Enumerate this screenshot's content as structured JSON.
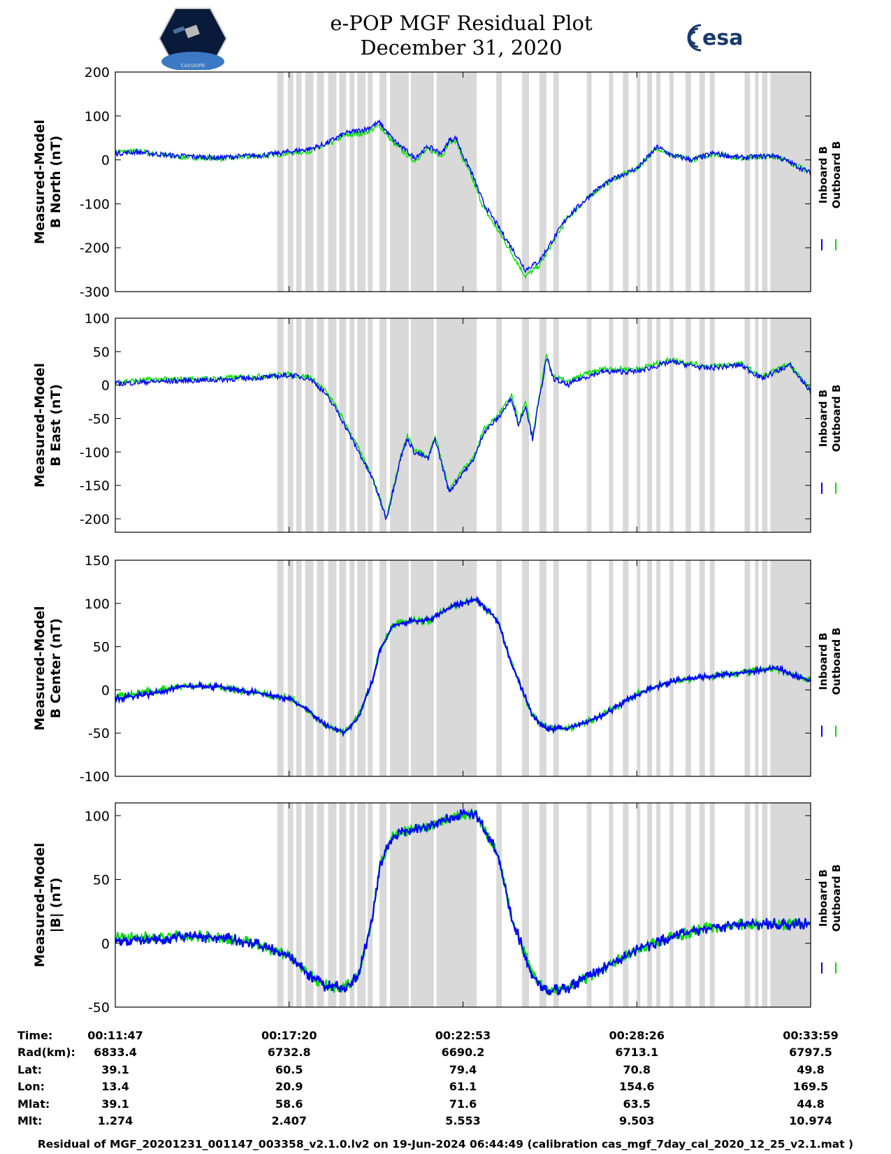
{
  "header": {
    "title": "e-POP MGF Residual Plot",
    "date": "December 31, 2020",
    "logo_left_text": "CASSIOPE",
    "logo_right_text": "esa"
  },
  "colors": {
    "inboard": "#0000ff",
    "outboard": "#00e000",
    "shade": "#d9d9d9"
  },
  "legend": {
    "inboard": "Inboard B",
    "outboard": "Outboard B"
  },
  "chart_data": [
    {
      "type": "line",
      "ylabel": [
        "Measured-Model",
        "B North (nT)"
      ],
      "ylim": [
        -300,
        200
      ],
      "yticks": [
        "200",
        "100",
        "0",
        "-100",
        "-200",
        "-300"
      ],
      "ytick_values": [
        200,
        100,
        0,
        -100,
        -200,
        -300
      ],
      "series": [
        {
          "name": "Inboard B",
          "x": [
            0,
            0.03,
            0.08,
            0.15,
            0.22,
            0.28,
            0.3,
            0.33,
            0.36,
            0.38,
            0.4,
            0.43,
            0.45,
            0.47,
            0.48,
            0.49,
            0.5,
            0.51,
            0.52,
            0.53,
            0.55,
            0.57,
            0.59,
            0.61,
            0.63,
            0.65,
            0.67,
            0.69,
            0.72,
            0.75,
            0.78,
            0.8,
            0.83,
            0.86,
            0.9,
            0.95,
            1.0
          ],
          "y": [
            15,
            18,
            10,
            5,
            12,
            25,
            35,
            60,
            70,
            85,
            45,
            5,
            30,
            15,
            45,
            50,
            10,
            -20,
            -60,
            -100,
            -150,
            -200,
            -250,
            -230,
            -180,
            -130,
            -100,
            -70,
            -40,
            -20,
            30,
            10,
            0,
            15,
            5,
            10,
            -30
          ]
        },
        {
          "name": "Outboard B",
          "x": [
            0,
            0.03,
            0.08,
            0.15,
            0.22,
            0.28,
            0.3,
            0.33,
            0.36,
            0.38,
            0.4,
            0.43,
            0.45,
            0.47,
            0.48,
            0.49,
            0.5,
            0.51,
            0.52,
            0.53,
            0.55,
            0.57,
            0.59,
            0.61,
            0.63,
            0.65,
            0.67,
            0.69,
            0.72,
            0.75,
            0.78,
            0.8,
            0.83,
            0.86,
            0.9,
            0.95,
            1.0
          ],
          "y": [
            18,
            20,
            8,
            3,
            10,
            20,
            30,
            55,
            62,
            78,
            38,
            -2,
            24,
            10,
            40,
            44,
            0,
            -30,
            -70,
            -110,
            -160,
            -212,
            -265,
            -240,
            -185,
            -133,
            -102,
            -72,
            -40,
            -20,
            28,
            10,
            0,
            14,
            4,
            9,
            -28
          ]
        }
      ]
    },
    {
      "type": "line",
      "ylabel": [
        "Measured-Model",
        "B East (nT)"
      ],
      "ylim": [
        -220,
        100
      ],
      "yticks": [
        "100",
        "50",
        "0",
        "-50",
        "-100",
        "-150",
        "-200"
      ],
      "ytick_values": [
        100,
        50,
        0,
        -50,
        -100,
        -150,
        -200
      ],
      "series": [
        {
          "name": "Inboard B",
          "x": [
            0,
            0.05,
            0.15,
            0.22,
            0.25,
            0.28,
            0.3,
            0.32,
            0.35,
            0.37,
            0.39,
            0.41,
            0.42,
            0.43,
            0.45,
            0.46,
            0.48,
            0.5,
            0.51,
            0.52,
            0.53,
            0.55,
            0.57,
            0.58,
            0.59,
            0.6,
            0.61,
            0.62,
            0.63,
            0.65,
            0.67,
            0.7,
            0.75,
            0.8,
            0.85,
            0.9,
            0.93,
            0.97,
            1.0
          ],
          "y": [
            2,
            5,
            8,
            12,
            15,
            10,
            -10,
            -40,
            -100,
            -140,
            -200,
            -110,
            -80,
            -100,
            -110,
            -80,
            -160,
            -130,
            -120,
            -100,
            -70,
            -50,
            -20,
            -60,
            -30,
            -80,
            -20,
            40,
            10,
            0,
            10,
            20,
            20,
            35,
            25,
            30,
            10,
            30,
            -10
          ]
        },
        {
          "name": "Outboard B",
          "x": [
            0,
            0.05,
            0.15,
            0.22,
            0.25,
            0.28,
            0.3,
            0.32,
            0.35,
            0.37,
            0.39,
            0.41,
            0.42,
            0.43,
            0.45,
            0.46,
            0.48,
            0.5,
            0.51,
            0.52,
            0.53,
            0.55,
            0.57,
            0.58,
            0.59,
            0.6,
            0.61,
            0.62,
            0.63,
            0.65,
            0.67,
            0.7,
            0.75,
            0.8,
            0.85,
            0.9,
            0.93,
            0.97,
            1.0
          ],
          "y": [
            5,
            8,
            10,
            14,
            16,
            12,
            -6,
            -36,
            -96,
            -138,
            -198,
            -106,
            -76,
            -96,
            -106,
            -76,
            -156,
            -126,
            -116,
            -96,
            -66,
            -46,
            -16,
            -56,
            -26,
            -76,
            -16,
            44,
            14,
            4,
            14,
            24,
            24,
            38,
            28,
            32,
            12,
            32,
            -8
          ]
        }
      ]
    },
    {
      "type": "line",
      "ylabel": [
        "Measured-Model",
        "B Center (nT)"
      ],
      "ylim": [
        -100,
        150
      ],
      "yticks": [
        "150",
        "100",
        "50",
        "0",
        "-50",
        "-100"
      ],
      "ytick_values": [
        150,
        100,
        50,
        0,
        -50,
        -100
      ],
      "series": [
        {
          "name": "Inboard B",
          "x": [
            0,
            0.05,
            0.1,
            0.15,
            0.2,
            0.25,
            0.28,
            0.3,
            0.33,
            0.35,
            0.37,
            0.38,
            0.4,
            0.43,
            0.45,
            0.48,
            0.5,
            0.52,
            0.55,
            0.57,
            0.6,
            0.62,
            0.65,
            0.7,
            0.75,
            0.8,
            0.85,
            0.9,
            0.95,
            1.0
          ],
          "y": [
            -10,
            -5,
            5,
            3,
            -3,
            -10,
            -25,
            -40,
            -50,
            -30,
            10,
            45,
            75,
            80,
            80,
            95,
            100,
            105,
            80,
            30,
            -30,
            -45,
            -45,
            -30,
            -5,
            10,
            15,
            20,
            25,
            10
          ]
        },
        {
          "name": "Outboard B",
          "x": [
            0,
            0.05,
            0.1,
            0.15,
            0.2,
            0.25,
            0.28,
            0.3,
            0.33,
            0.35,
            0.37,
            0.38,
            0.4,
            0.43,
            0.45,
            0.48,
            0.5,
            0.52,
            0.55,
            0.57,
            0.6,
            0.62,
            0.65,
            0.7,
            0.75,
            0.8,
            0.85,
            0.9,
            0.95,
            1.0
          ],
          "y": [
            -8,
            -2,
            5,
            3,
            -3,
            -10,
            -25,
            -40,
            -50,
            -30,
            10,
            45,
            75,
            80,
            80,
            95,
            100,
            105,
            80,
            30,
            -30,
            -45,
            -45,
            -30,
            -5,
            10,
            15,
            20,
            25,
            10
          ]
        }
      ]
    },
    {
      "type": "line",
      "ylabel": [
        "Measured-Model",
        "|B| (nT)"
      ],
      "ylim": [
        -50,
        110
      ],
      "yticks": [
        "100",
        "50",
        "0",
        "-50"
      ],
      "ytick_values": [
        100,
        50,
        0,
        -50
      ],
      "series": [
        {
          "name": "Inboard B",
          "x": [
            0,
            0.05,
            0.1,
            0.15,
            0.2,
            0.25,
            0.28,
            0.3,
            0.33,
            0.35,
            0.37,
            0.38,
            0.4,
            0.43,
            0.45,
            0.48,
            0.5,
            0.52,
            0.55,
            0.57,
            0.6,
            0.62,
            0.65,
            0.7,
            0.75,
            0.8,
            0.85,
            0.9,
            0.95,
            1.0
          ],
          "y": [
            2,
            3,
            5,
            5,
            0,
            -10,
            -25,
            -33,
            -35,
            -25,
            20,
            60,
            85,
            90,
            92,
            98,
            102,
            100,
            70,
            20,
            -25,
            -38,
            -35,
            -20,
            -5,
            5,
            12,
            15,
            15,
            15
          ]
        },
        {
          "name": "Outboard B",
          "x": [
            0,
            0.05,
            0.1,
            0.15,
            0.2,
            0.25,
            0.28,
            0.3,
            0.33,
            0.35,
            0.37,
            0.38,
            0.4,
            0.43,
            0.45,
            0.48,
            0.5,
            0.52,
            0.55,
            0.57,
            0.6,
            0.62,
            0.65,
            0.7,
            0.75,
            0.8,
            0.85,
            0.9,
            0.95,
            1.0
          ],
          "y": [
            4,
            5,
            6,
            5,
            0,
            -10,
            -25,
            -33,
            -35,
            -25,
            20,
            60,
            85,
            90,
            92,
            98,
            102,
            100,
            70,
            20,
            -25,
            -38,
            -35,
            -20,
            -5,
            5,
            12,
            15,
            15,
            15
          ]
        }
      ]
    }
  ],
  "shade_intervals": [
    [
      0.233,
      0.242
    ],
    [
      0.248,
      0.256
    ],
    [
      0.26,
      0.268
    ],
    [
      0.273,
      0.285
    ],
    [
      0.29,
      0.3
    ],
    [
      0.306,
      0.318
    ],
    [
      0.322,
      0.332
    ],
    [
      0.337,
      0.344
    ],
    [
      0.348,
      0.36
    ],
    [
      0.363,
      0.37
    ],
    [
      0.38,
      0.39
    ],
    [
      0.395,
      0.422
    ],
    [
      0.425,
      0.458
    ],
    [
      0.462,
      0.52
    ],
    [
      0.548,
      0.556
    ],
    [
      0.585,
      0.595
    ],
    [
      0.61,
      0.62
    ],
    [
      0.63,
      0.638
    ],
    [
      0.678,
      0.685
    ],
    [
      0.71,
      0.716
    ],
    [
      0.73,
      0.738
    ],
    [
      0.75,
      0.755
    ],
    [
      0.765,
      0.772
    ],
    [
      0.778,
      0.784
    ],
    [
      0.797,
      0.803
    ],
    [
      0.82,
      0.828
    ],
    [
      0.84,
      0.848
    ],
    [
      0.855,
      0.862
    ],
    [
      0.905,
      0.913
    ],
    [
      0.92,
      0.925
    ],
    [
      0.93,
      0.938
    ],
    [
      0.942,
      1.0
    ]
  ],
  "info_table": {
    "labels": [
      "Time:",
      "Rad(km):",
      "Lat:",
      "Lon:",
      "Mlat:",
      "Mlt:"
    ],
    "columns": [
      [
        "00:11:47",
        "6833.4",
        "39.1",
        "13.4",
        "39.1",
        "1.274"
      ],
      [
        "00:17:20",
        "6732.8",
        "60.5",
        "20.9",
        "58.6",
        "2.407"
      ],
      [
        "00:22:53",
        "6690.2",
        "79.4",
        "61.1",
        "71.6",
        "5.553"
      ],
      [
        "00:28:26",
        "6713.1",
        "70.8",
        "154.6",
        "63.5",
        "9.503"
      ],
      [
        "00:33:59",
        "6797.5",
        "49.8",
        "169.5",
        "44.8",
        "10.974"
      ]
    ]
  },
  "footer": "Residual of MGF_20201231_001147_003358_v2.1.0.lv2 on 19-Jun-2024 06:44:49 (calibration cas_mgf_7day_cal_2020_12_25_v2.1.mat )"
}
